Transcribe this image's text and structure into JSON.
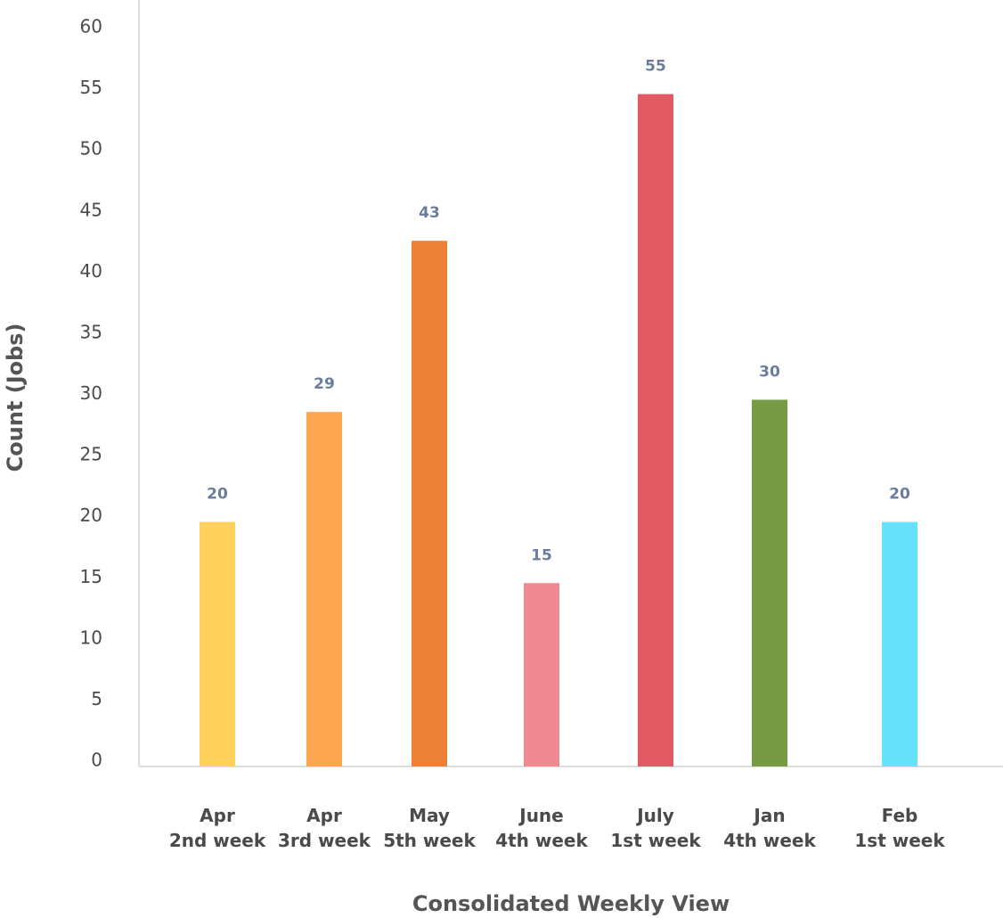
{
  "chart_data": {
    "type": "bar",
    "x_label": "Consolidated Weekly View",
    "y_label": "Count (Jobs)",
    "categories": [
      "Apr\n2nd week",
      "Apr\n3rd week",
      "May\n5th week",
      "June\n4th week",
      "July\n1st week",
      "Jan\n4th week",
      "Feb\n1st week"
    ],
    "values": [
      20,
      29,
      43,
      15,
      55,
      30,
      20
    ],
    "colors": [
      "#FFD05A",
      "#FCA64F",
      "#EC8135",
      "#EF8A90",
      "#E35A64",
      "#769B42",
      "#66E1FC"
    ],
    "ylim": [
      0,
      60
    ],
    "yticks": [
      0,
      5,
      10,
      15,
      20,
      25,
      30,
      35,
      40,
      45,
      50,
      55,
      60
    ],
    "grid": false
  }
}
